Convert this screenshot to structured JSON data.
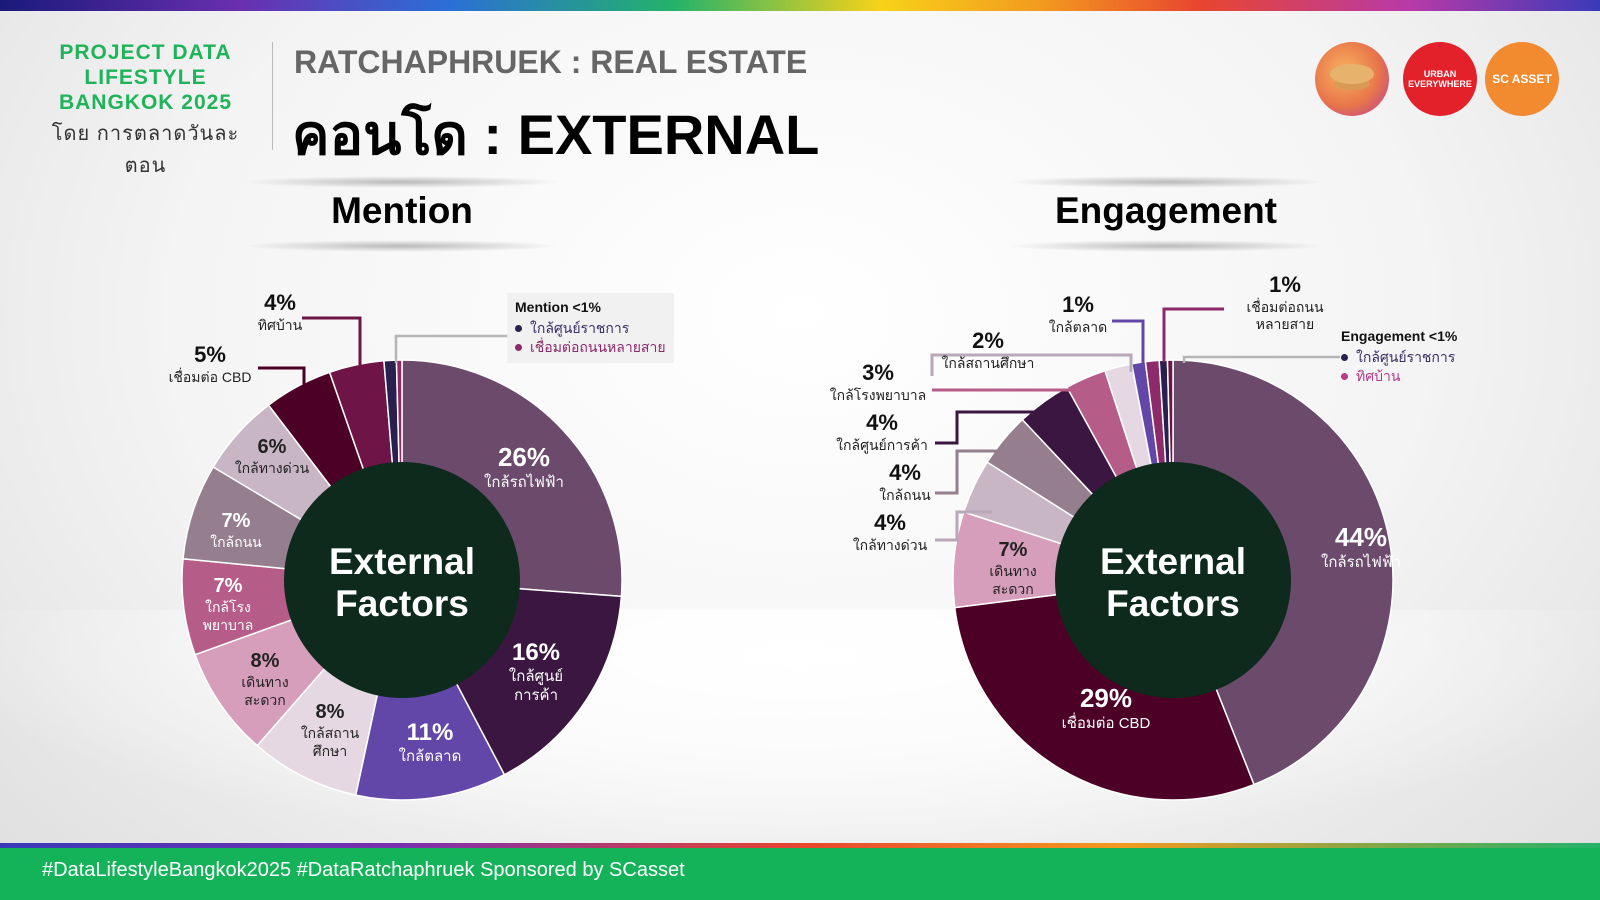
{
  "header": {
    "brand_line1": "PROJECT DATA",
    "brand_line2": "LIFESTYLE",
    "brand_line3": "BANGKOK 2025",
    "brand_sub": "โดย การตลาดวันละตอน",
    "supertitle": "RATCHAPHRUEK : REAL ESTATE",
    "title": "คอนโด : EXTERNAL"
  },
  "logos": {
    "logo1": "",
    "logo2": "URBAN EVERYWHERE",
    "logo3": "SC ASSET"
  },
  "colors": {
    "brand_green": "#1fb45a",
    "center": "#0d2a1c"
  },
  "chart_data": [
    {
      "type": "pie",
      "title": "Mention",
      "center_label": "External Factors",
      "series": [
        {
          "label": "ใกล้รถไฟฟ้า",
          "value": 26,
          "value_label": "26%",
          "color": "#6b4a6c"
        },
        {
          "label": "ใกล้ศูนย์การค้า",
          "value": 16,
          "value_label": "16%",
          "color": "#3a1640"
        },
        {
          "label": "ใกล้ตลาด",
          "value": 11,
          "value_label": "11%",
          "color": "#6246a8"
        },
        {
          "label": "ใกล้สถานศึกษา",
          "value": 8,
          "value_label": "8%",
          "color": "#e6d8e2"
        },
        {
          "label": "เดินทางสะดวก",
          "value": 8,
          "value_label": "8%",
          "color": "#d79ebb"
        },
        {
          "label": "ใกล้โรงพยาบาล",
          "value": 7,
          "value_label": "7%",
          "color": "#b65c88"
        },
        {
          "label": "ใกล้ถนน",
          "value": 7,
          "value_label": "7%",
          "color": "#957f8e"
        },
        {
          "label": "ใกล้ทางด่วน",
          "value": 6,
          "value_label": "6%",
          "color": "#c8b6c4"
        },
        {
          "label": "เชื่อมต่อ CBD",
          "value": 5,
          "value_label": "5%",
          "color": "#4c0026"
        },
        {
          "label": "ทิศบ้าน",
          "value": 4,
          "value_label": "4%",
          "color": "#6e1446"
        },
        {
          "label": "ใกล้ศูนย์ราชการ",
          "value": 0.9,
          "value_label": "",
          "color": "#2a2050"
        },
        {
          "label": "เชื่อมต่อถนนหลายสาย",
          "value": 0.4,
          "value_label": "",
          "color": "#8c2a6a"
        }
      ],
      "small_legend": {
        "title": "Mention <1%",
        "items": [
          {
            "label": "ใกล้ศูนย์ราชการ",
            "color": "#2a2050"
          },
          {
            "label": "เชื่อมต่อถนนหลายสาย",
            "color": "#8c2a6a"
          }
        ]
      }
    },
    {
      "type": "pie",
      "title": "Engagement",
      "center_label": "External Factors",
      "series": [
        {
          "label": "ใกล้รถไฟฟ้า",
          "value": 44,
          "value_label": "44%",
          "color": "#6b4a6c"
        },
        {
          "label": "เชื่อมต่อ CBD",
          "value": 29,
          "value_label": "29%",
          "color": "#4c0026"
        },
        {
          "label": "เดินทางสะดวก",
          "value": 7,
          "value_label": "7%",
          "color": "#d79ebb"
        },
        {
          "label": "ใกล้ทางด่วน",
          "value": 4,
          "value_label": "4%",
          "color": "#c8b6c4"
        },
        {
          "label": "ใกล้ถนน",
          "value": 4,
          "value_label": "4%",
          "color": "#957f8e"
        },
        {
          "label": "ใกล้ศูนย์การค้า",
          "value": 4,
          "value_label": "4%",
          "color": "#3a1640"
        },
        {
          "label": "ใกล้โรงพยาบาล",
          "value": 3,
          "value_label": "3%",
          "color": "#b65c88"
        },
        {
          "label": "ใกล้สถานศึกษา",
          "value": 2,
          "value_label": "2%",
          "color": "#e6d8e2"
        },
        {
          "label": "ใกล้ตลาด",
          "value": 1,
          "value_label": "1%",
          "color": "#6246a8"
        },
        {
          "label": "เชื่อมต่อถนนหลายสาย",
          "value": 1,
          "value_label": "1%",
          "color": "#8c2a6a"
        },
        {
          "label": "ใกล้ศูนย์ราชการ",
          "value": 0.6,
          "value_label": "",
          "color": "#2a2050"
        },
        {
          "label": "ทิศบ้าน",
          "value": 0.4,
          "value_label": "",
          "color": "#6e1446"
        }
      ],
      "small_legend": {
        "title": "Engagement <1%",
        "items": [
          {
            "label": "ใกล้ศูนย์ราชการ",
            "color": "#2a2050"
          },
          {
            "label": "ทิศบ้าน",
            "color": "#b83a86"
          }
        ]
      }
    }
  ],
  "footer": {
    "text": "#DataLifestyleBangkok2025 #DataRatchaphruek Sponsored by SCasset"
  }
}
